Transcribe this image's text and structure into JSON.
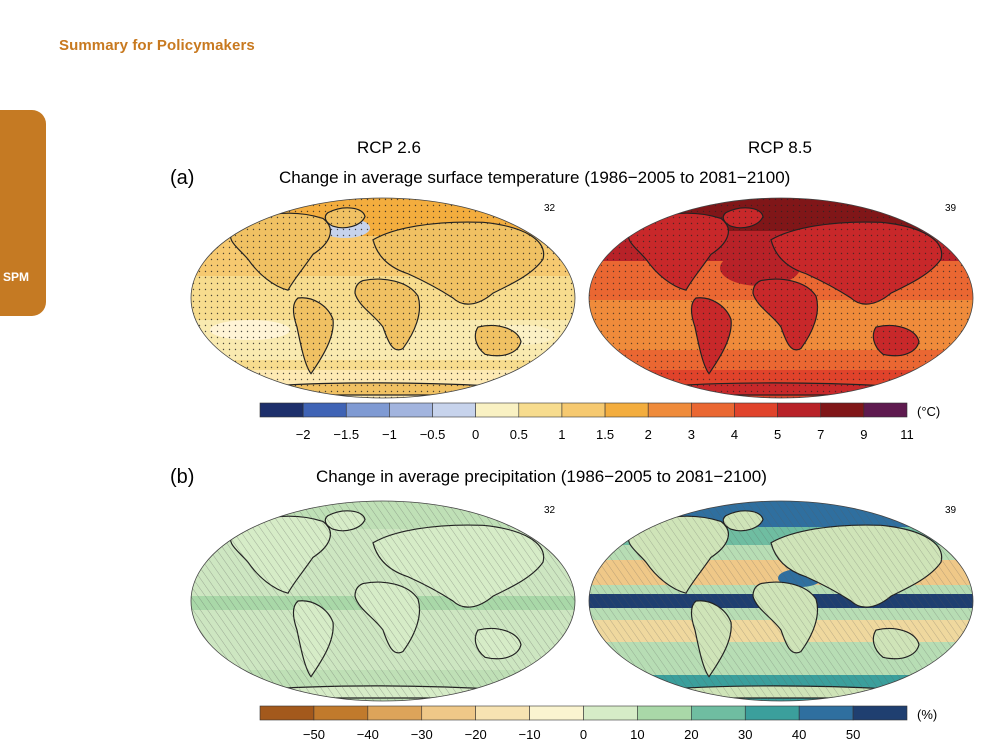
{
  "header": {
    "title": "Summary for Policymakers"
  },
  "side_tab": {
    "label": "SPM"
  },
  "figure": {
    "columns": [
      "RCP 2.6",
      "RCP 8.5"
    ],
    "panels": [
      {
        "letter": "(a)",
        "title": "Change in average surface temperature (1986−2005 to 2081−2100)",
        "model_counts": [
          "32",
          "39"
        ],
        "colorbar": {
          "unit": "(°C)",
          "colors": [
            "#1d2f6b",
            "#3f63b5",
            "#7f9ad3",
            "#a2b4de",
            "#c7d3ec",
            "#f9f1c3",
            "#f7dc8e",
            "#f6c970",
            "#f3ad3e",
            "#ef8b3b",
            "#ea6732",
            "#e0432b",
            "#b82228",
            "#801618",
            "#5e1a4f"
          ],
          "ticks": [
            "−2",
            "−1.5",
            "−1",
            "−0.5",
            "0",
            "0.5",
            "1",
            "1.5",
            "2",
            "3",
            "4",
            "5",
            "7",
            "9",
            "11"
          ]
        }
      },
      {
        "letter": "(b)",
        "title": "Change in average precipitation (1986−2005 to 2081−2100)",
        "model_counts": [
          "32",
          "39"
        ],
        "colorbar": {
          "unit": "(%)",
          "colors": [
            "#a3591c",
            "#c17a2c",
            "#dda45a",
            "#efc888",
            "#f7e3b2",
            "#faf4d0",
            "#d6ecc7",
            "#a9d8a8",
            "#6fbda1",
            "#3b9f9c",
            "#2f6f9f",
            "#1f3f70"
          ],
          "ticks": [
            "−50",
            "−40",
            "−30",
            "−20",
            "−10",
            "0",
            "10",
            "20",
            "30",
            "40",
            "50"
          ]
        }
      }
    ]
  }
}
